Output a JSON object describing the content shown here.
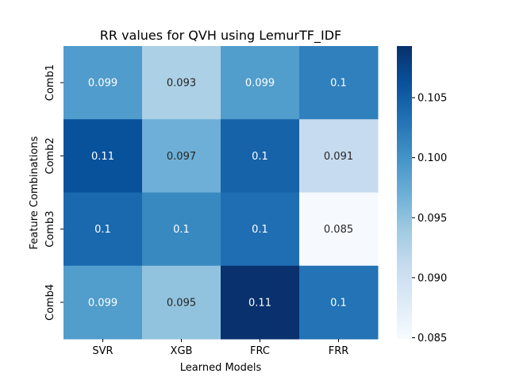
{
  "chart_data": {
    "type": "heatmap",
    "title": "RR values for QVH using LemurTF_IDF",
    "xlabel": "Learned Models",
    "ylabel": "Feature Combinations",
    "columns": [
      "SVR",
      "XGB",
      "FRC",
      "FRR"
    ],
    "rows": [
      "Comb1",
      "Comb2",
      "Comb3",
      "Comb4"
    ],
    "values": [
      [
        0.0991,
        0.093,
        0.099,
        0.1018
      ],
      [
        0.1062,
        0.097,
        0.1045,
        0.091
      ],
      [
        0.104,
        0.101,
        0.1035,
        0.085
      ],
      [
        0.099,
        0.0948,
        0.1092,
        0.103
      ]
    ],
    "cell_labels": [
      [
        "0.099",
        "0.093",
        "0.099",
        "0.1"
      ],
      [
        "0.11",
        "0.097",
        "0.1",
        "0.091"
      ],
      [
        "0.1",
        "0.1",
        "0.1",
        "0.085"
      ],
      [
        "0.099",
        "0.095",
        "0.11",
        "0.1"
      ]
    ],
    "colorbar": {
      "min": 0.0849,
      "max": 0.1093,
      "ticks": [
        0.085,
        0.09,
        0.095,
        0.1,
        0.105
      ],
      "tick_labels": [
        "0.085",
        "0.090",
        "0.095",
        "0.100",
        "0.105"
      ],
      "colormap": "Blues"
    }
  }
}
